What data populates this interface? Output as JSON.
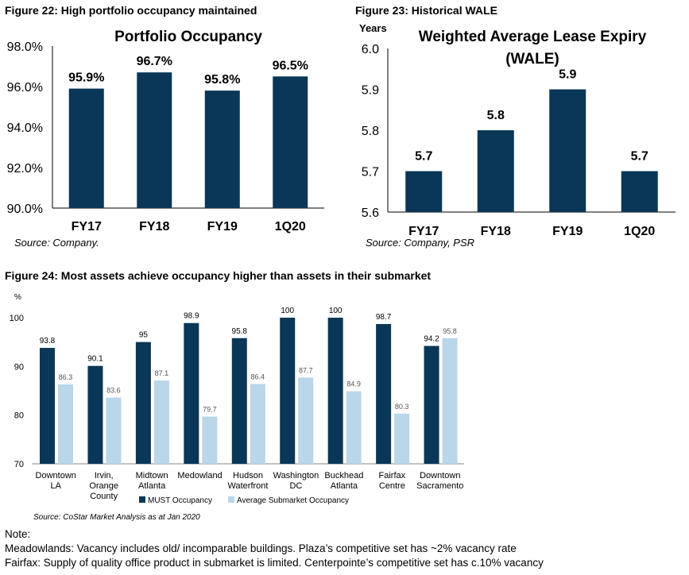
{
  "figures": {
    "fig22": {
      "caption": "Figure 22: High portfolio occupancy maintained",
      "source": "Source: Company."
    },
    "fig23": {
      "caption": "Figure 23: Historical WALE",
      "source": "Source: Company, PSR"
    },
    "fig24": {
      "caption": "Figure 24: Most assets achieve occupancy higher than assets in their submarket",
      "source": "Source: CoStar Market Analysis as at Jan 2020"
    }
  },
  "notes": {
    "heading": "Note:",
    "lines": [
      "Meadowlands: Vacancy includes old/ incomparable buildings. Plaza’s competitive set has ~2% vacancy rate",
      "Fairfax: Supply of quality office product in submarket is limited. Centerpointe’s competitive set has c.10% vacancy"
    ]
  },
  "colors": {
    "navy": "#0a3757",
    "light_blue": "#b9d6ea"
  },
  "chart_data": [
    {
      "type": "bar",
      "title": "Portfolio Occupancy",
      "categories": [
        "FY17",
        "FY18",
        "FY19",
        "1Q20"
      ],
      "values": [
        95.9,
        96.7,
        95.8,
        96.5
      ],
      "value_labels": [
        "95.9%",
        "96.7%",
        "95.8%",
        "96.5%"
      ],
      "y_ticks": [
        "98.0%",
        "96.0%",
        "94.0%",
        "92.0%",
        "90.0%"
      ],
      "y_tick_values": [
        98,
        96,
        94,
        92,
        90
      ],
      "ylim": [
        90,
        98
      ],
      "grid": false
    },
    {
      "type": "bar",
      "title": "Weighted Average Lease Expiry (WALE)",
      "ylabel": "Years",
      "categories": [
        "FY17",
        "FY18",
        "FY19",
        "1Q20"
      ],
      "values": [
        5.7,
        5.8,
        5.9,
        5.7
      ],
      "value_labels": [
        "5.7",
        "5.8",
        "5.9",
        "5.7"
      ],
      "y_ticks": [
        "6.0",
        "5.9",
        "5.8",
        "5.7",
        "5.6"
      ],
      "y_tick_values": [
        6.0,
        5.9,
        5.8,
        5.7,
        5.6
      ],
      "ylim": [
        5.6,
        6.0
      ],
      "grid": false
    },
    {
      "type": "bar",
      "ylabel": "%",
      "categories": [
        [
          "Downtown",
          "LA"
        ],
        [
          "Irvin,",
          "Orange",
          "County"
        ],
        [
          "Midtown",
          "Atlanta"
        ],
        [
          "Medowland"
        ],
        [
          "Hudson",
          "Waterfront"
        ],
        [
          "Washington",
          "DC"
        ],
        [
          "Buckhead",
          "Atlanta"
        ],
        [
          "Fairfax",
          "Centre"
        ],
        [
          "Downtown",
          "Sacramento"
        ]
      ],
      "series": [
        {
          "name": "MUST Occupancy",
          "values": [
            93.8,
            90.1,
            95,
            98.9,
            95.8,
            100,
            100,
            98.7,
            94.2
          ],
          "labels": [
            "93.8",
            "90.1",
            "95",
            "98.9",
            "95.8",
            "100",
            "100",
            "98.7",
            "94.2"
          ]
        },
        {
          "name": "Average Submarket Occupancy",
          "values": [
            86.3,
            83.6,
            87.1,
            79.7,
            86.4,
            87.7,
            84.9,
            80.3,
            95.8
          ],
          "labels": [
            "86.3",
            "83.6",
            "87.1",
            "79.7",
            "86.4",
            "87.7",
            "84.9",
            "80.3",
            "95.8"
          ]
        }
      ],
      "y_ticks": [
        "100",
        "90",
        "80",
        "70"
      ],
      "y_tick_values": [
        100,
        90,
        80,
        70
      ],
      "ylim": [
        70,
        100
      ],
      "legend": "bottom",
      "grid": false
    }
  ]
}
